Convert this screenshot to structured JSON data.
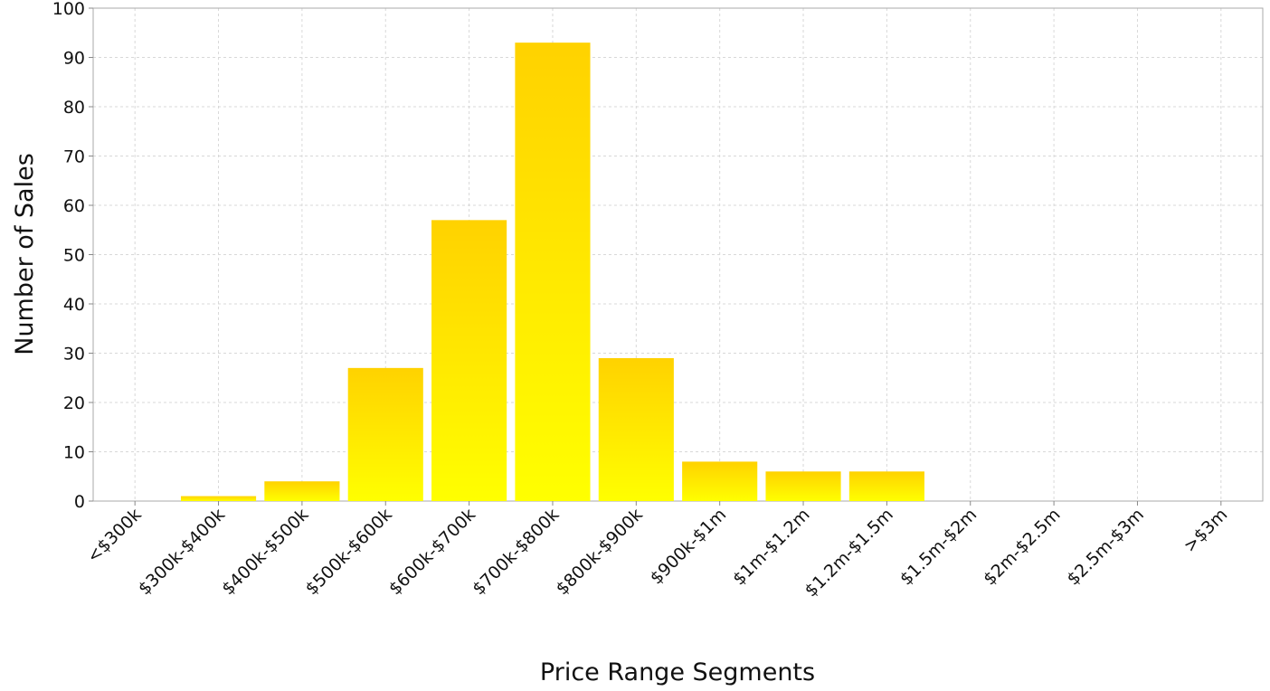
{
  "chart_data": {
    "type": "bar",
    "title": "",
    "xlabel": "Price Range Segments",
    "ylabel": "Number of Sales",
    "categories": [
      "<$300k",
      "$300k-$400k",
      "$400k-$500k",
      "$500k-$600k",
      "$600k-$700k",
      "$700k-$800k",
      "$800k-$900k",
      "$900k-$1m",
      "$1m-$1.2m",
      "$1.2m-$1.5m",
      "$1.5m-$2m",
      "$2m-$2.5m",
      "$2.5m-$3m",
      ">$3m"
    ],
    "values": [
      0,
      1,
      4,
      27,
      57,
      93,
      29,
      8,
      6,
      6,
      0,
      0,
      0,
      0
    ],
    "ylim": [
      0,
      100
    ],
    "yticks": [
      0,
      10,
      20,
      30,
      40,
      50,
      60,
      70,
      80,
      90,
      100
    ],
    "grid": true,
    "legend": "none",
    "colors": {
      "bar_top": "#FFD200",
      "bar_bottom": "#FFFF00",
      "grid": "#d8d8d8",
      "frame": "#aaaaaa"
    }
  }
}
